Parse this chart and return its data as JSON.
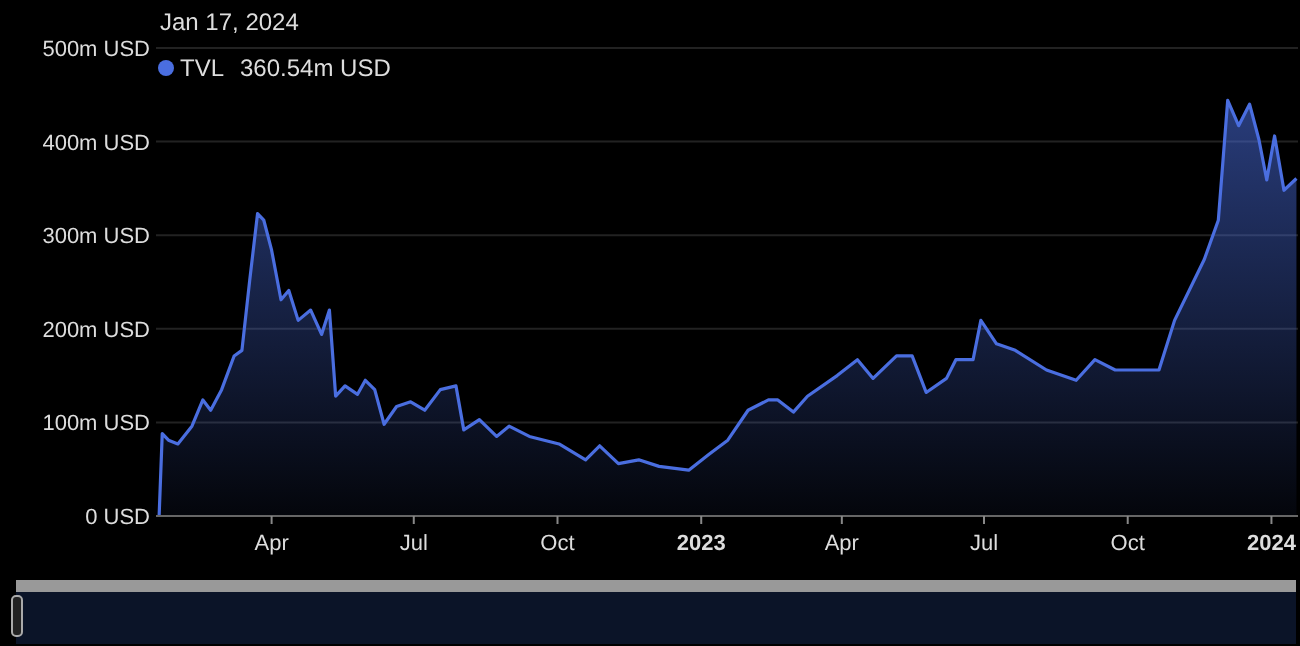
{
  "chart_data": {
    "type": "area",
    "x": [
      "2022-01-19",
      "2022-01-21",
      "2022-01-25",
      "2022-01-31",
      "2022-02-09",
      "2022-02-16",
      "2022-02-21",
      "2022-02-28",
      "2022-03-08",
      "2022-03-13",
      "2022-03-18",
      "2022-03-23",
      "2022-03-27",
      "2022-04-01",
      "2022-04-07",
      "2022-04-12",
      "2022-04-18",
      "2022-04-26",
      "2022-05-03",
      "2022-05-08",
      "2022-05-12",
      "2022-05-18",
      "2022-05-26",
      "2022-05-31",
      "2022-06-06",
      "2022-06-12",
      "2022-06-20",
      "2022-06-29",
      "2022-07-08",
      "2022-07-18",
      "2022-07-28",
      "2022-08-02",
      "2022-08-12",
      "2022-08-23",
      "2022-08-31",
      "2022-09-13",
      "2022-10-02",
      "2022-10-19",
      "2022-10-28",
      "2022-11-09",
      "2022-11-22",
      "2022-12-05",
      "2022-12-24",
      "2023-01-06",
      "2023-01-18",
      "2023-01-31",
      "2023-02-13",
      "2023-02-19",
      "2023-03-01",
      "2023-03-10",
      "2023-03-29",
      "2023-04-11",
      "2023-04-21",
      "2023-05-06",
      "2023-05-16",
      "2023-05-25",
      "2023-06-07",
      "2023-06-13",
      "2023-06-24",
      "2023-06-29",
      "2023-07-09",
      "2023-07-21",
      "2023-08-10",
      "2023-08-29",
      "2023-09-10",
      "2023-09-23",
      "2023-10-21",
      "2023-10-31",
      "2023-11-19",
      "2023-11-28",
      "2023-12-04",
      "2023-12-11",
      "2023-12-18",
      "2023-12-24",
      "2023-12-29",
      "2024-01-03",
      "2024-01-09",
      "2024-01-17"
    ],
    "series": [
      {
        "name": "TVL",
        "color": "#4a6ee0",
        "values": [
          0,
          88,
          81,
          77,
          96,
          124,
          113,
          135,
          171,
          177,
          252,
          323,
          316,
          284,
          231,
          241,
          209,
          220,
          194,
          220,
          128,
          139,
          130,
          145,
          135,
          98,
          117,
          122,
          113,
          135,
          139,
          92,
          103,
          85,
          96,
          85,
          77,
          60,
          75,
          56,
          60,
          53,
          49,
          66,
          81,
          113,
          124,
          124,
          111,
          128,
          150,
          167,
          147,
          171,
          171,
          132,
          147,
          167,
          167,
          209,
          184,
          177,
          156,
          145,
          167,
          156,
          156,
          209,
          274,
          316,
          444,
          417,
          440,
          402,
          359,
          406,
          348,
          360.54
        ]
      }
    ],
    "xlim": [
      "2022-01-17",
      "2024-01-18"
    ],
    "xticks": [
      {
        "value": "2022-04-01",
        "label": "Apr"
      },
      {
        "value": "2022-07-01",
        "label": "Jul"
      },
      {
        "value": "2022-10-01",
        "label": "Oct"
      },
      {
        "value": "2023-01-01",
        "label": "2023"
      },
      {
        "value": "2023-04-01",
        "label": "Apr"
      },
      {
        "value": "2023-07-01",
        "label": "Jul"
      },
      {
        "value": "2023-10-01",
        "label": "Oct"
      },
      {
        "value": "2024-01-01",
        "label": "2024"
      }
    ],
    "ylim": [
      0,
      500
    ],
    "yticks": [
      {
        "value": 0,
        "label": "0 USD"
      },
      {
        "value": 100,
        "label": "100m USD"
      },
      {
        "value": 200,
        "label": "200m USD"
      },
      {
        "value": 300,
        "label": "300m USD"
      },
      {
        "value": 400,
        "label": "400m USD"
      },
      {
        "value": 500,
        "label": "500m USD"
      }
    ],
    "grid": "y",
    "legend": "top left",
    "annotations": [
      "Jan 17, 2024",
      "360.54m USD"
    ]
  }
}
